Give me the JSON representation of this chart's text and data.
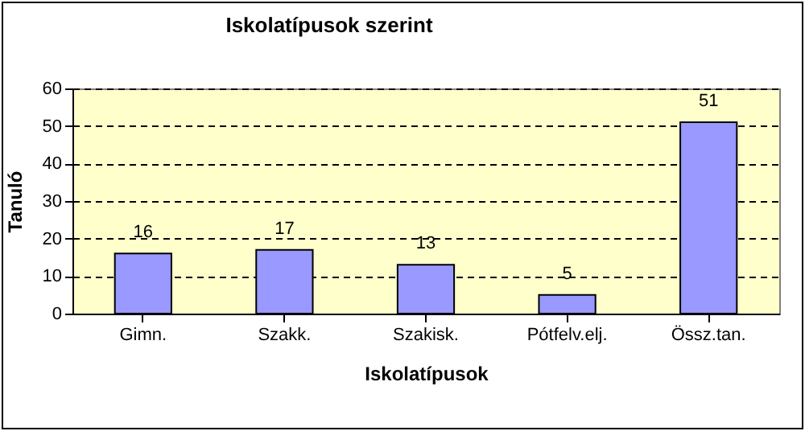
{
  "chart_data": {
    "type": "bar",
    "title": "Iskolatípusok  szerint",
    "xlabel": "Iskolatípusok",
    "ylabel": "Tanuló",
    "categories": [
      "Gimn.",
      "Szakk.",
      "Szakisk.",
      "Pótfelv.elj.",
      "Össz.tan."
    ],
    "values": [
      16,
      17,
      13,
      5,
      51
    ],
    "color": "#9999ff",
    "ylim": [
      0,
      60
    ],
    "yticks": [
      0,
      10,
      20,
      30,
      40,
      50,
      60
    ],
    "grid": "y",
    "data_labels": true
  }
}
